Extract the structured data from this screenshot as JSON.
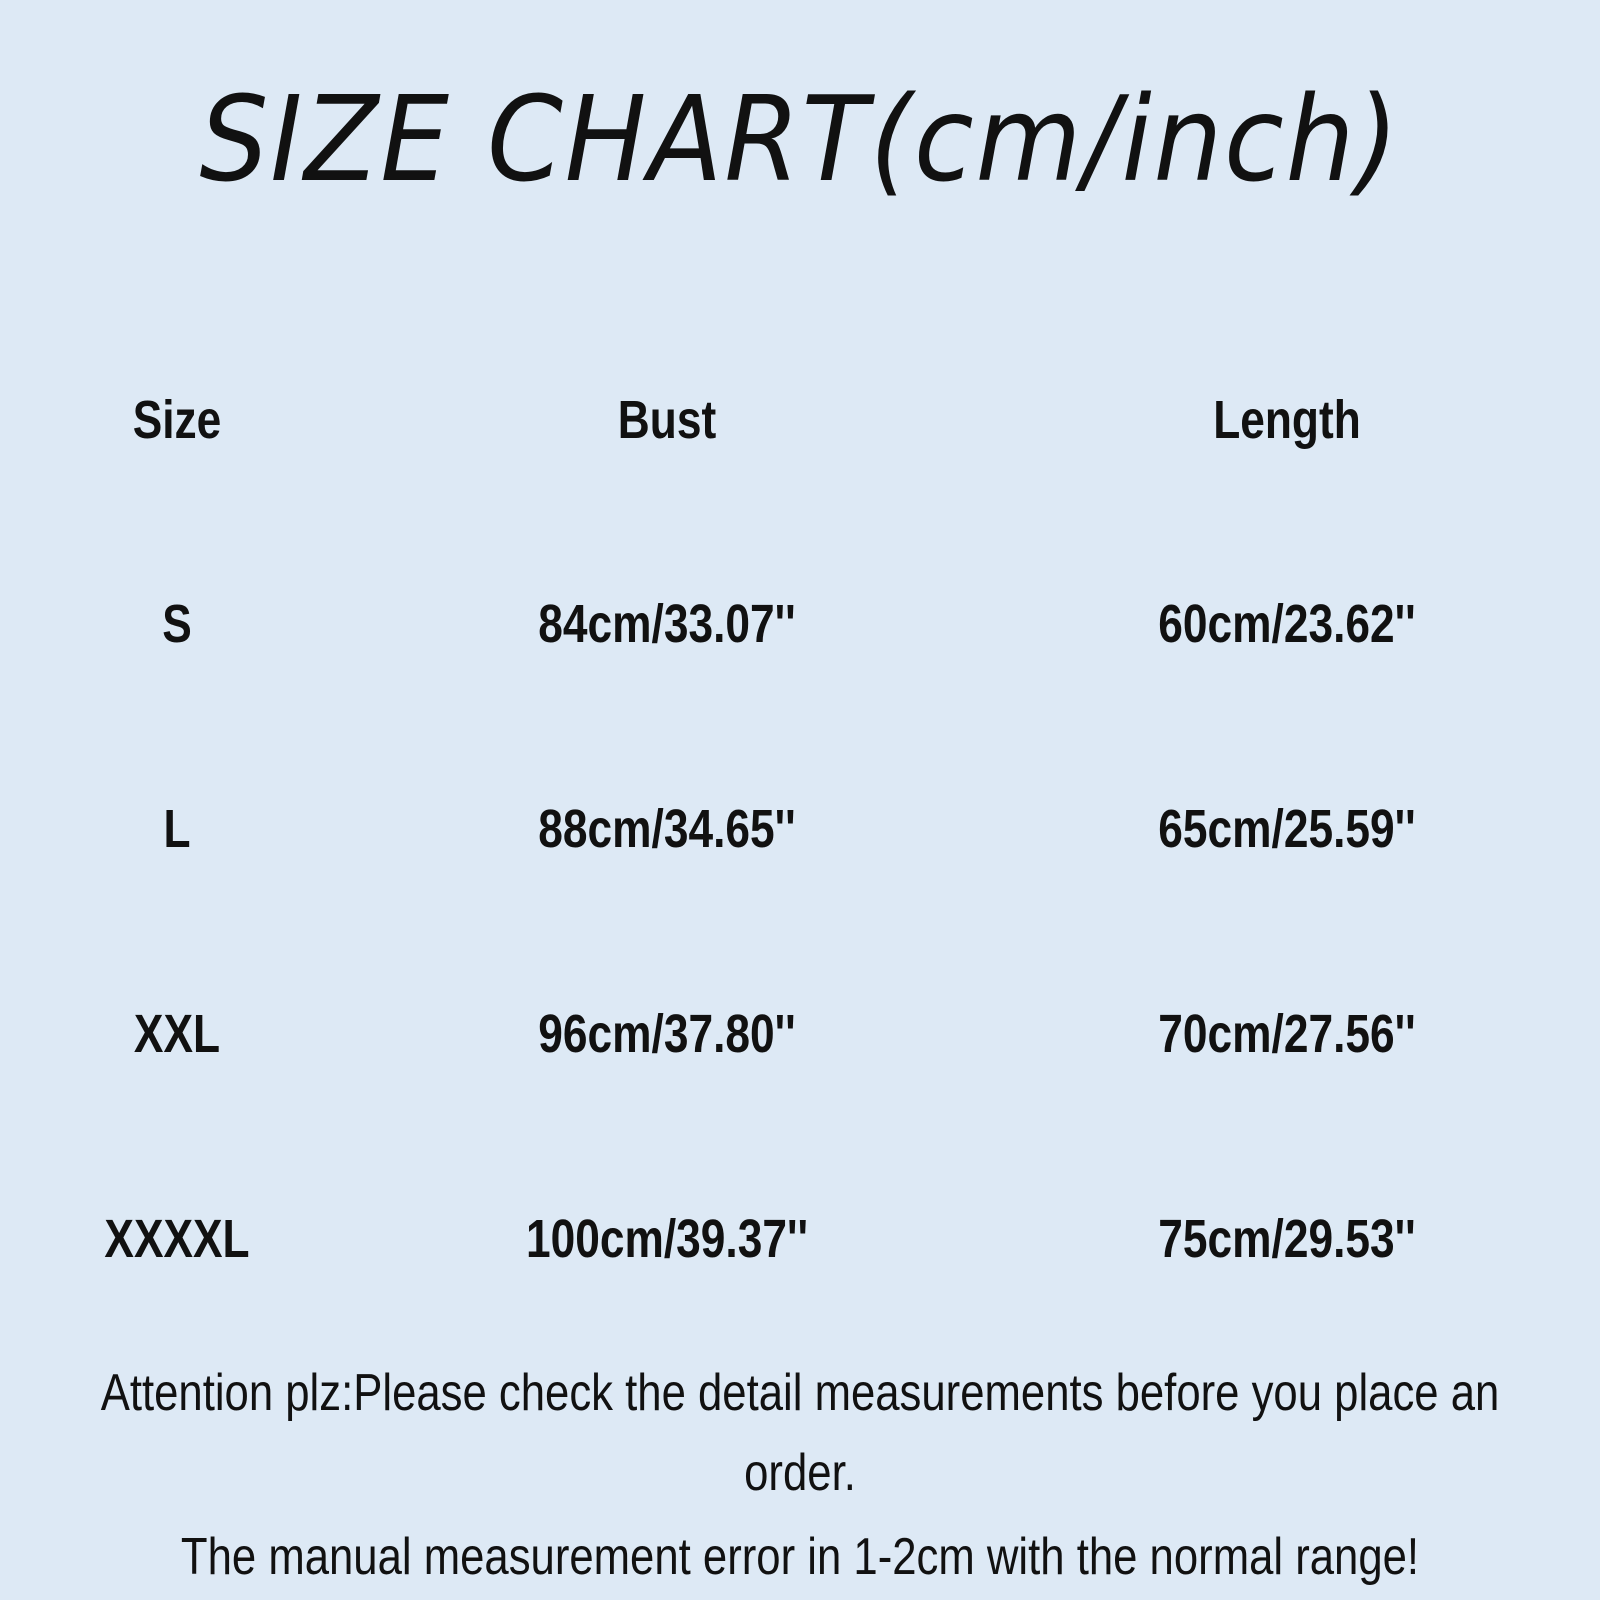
{
  "title": "SIZE CHART(cm/inch)",
  "table": {
    "headers": [
      "Size",
      "Bust",
      "Length"
    ],
    "rows": [
      [
        "S",
        "84cm/33.07''",
        "60cm/23.62''"
      ],
      [
        "L",
        "88cm/34.65''",
        "65cm/25.59''"
      ],
      [
        "XXL",
        "96cm/37.80''",
        "70cm/27.56''"
      ],
      [
        "XXXXL",
        "100cm/39.37''",
        "75cm/29.53''"
      ]
    ]
  },
  "notes": [
    "Attention plz:Please check the detail measurements before you place an",
    "order.",
    "The manual measurement error in 1-2cm with the normal range!"
  ],
  "colors": {
    "background": "#dde9f5",
    "text": "#111111"
  }
}
